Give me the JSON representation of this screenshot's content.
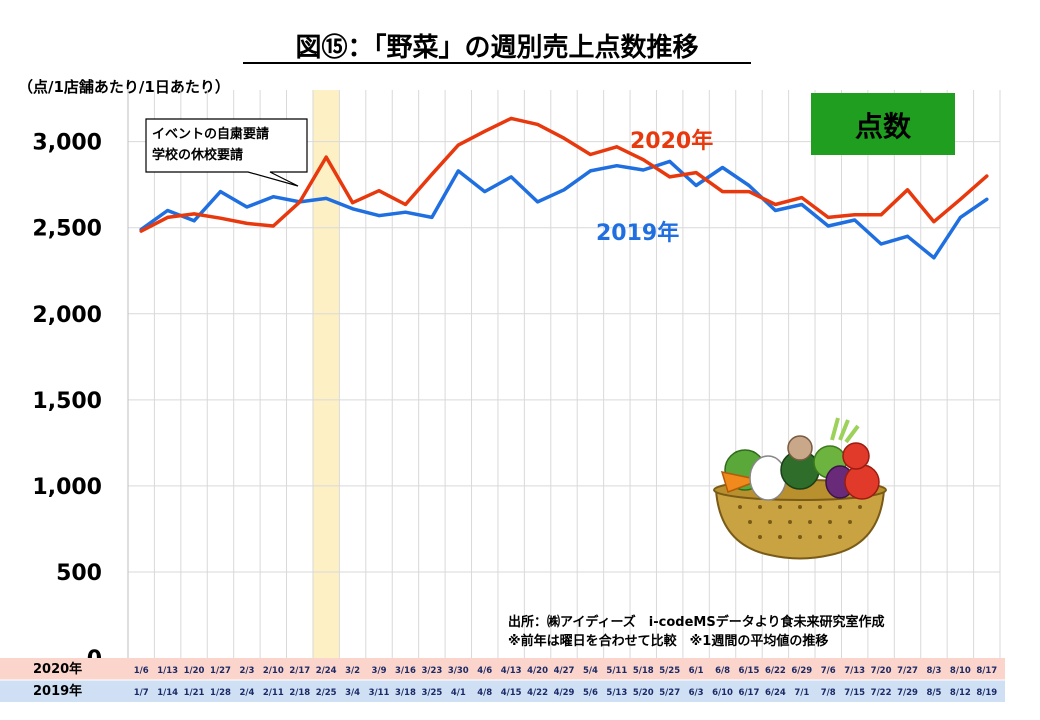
{
  "chart_data": {
    "type": "line",
    "title": "図⑮：「野菜」の週別売上点数推移",
    "unit_label": "（点/1店舗あたり/1日あたり）",
    "ylim": [
      0,
      3300
    ],
    "yticks": [
      0,
      500,
      1000,
      1500,
      2000,
      2500,
      3000
    ],
    "ytick_labels": [
      "0",
      "500",
      "1,000",
      "1,500",
      "2,000",
      "2,500",
      "3,000"
    ],
    "grid": true,
    "badge": "点数",
    "categories_2020": [
      "1/6",
      "1/13",
      "1/20",
      "1/27",
      "2/3",
      "2/10",
      "2/17",
      "2/24",
      "3/2",
      "3/9",
      "3/16",
      "3/23",
      "3/30",
      "4/6",
      "4/13",
      "4/20",
      "4/27",
      "5/4",
      "5/11",
      "5/18",
      "5/25",
      "6/1",
      "6/8",
      "6/15",
      "6/22",
      "6/29",
      "7/6",
      "7/13",
      "7/20",
      "7/27",
      "8/3",
      "8/10",
      "8/17"
    ],
    "categories_2019": [
      "1/7",
      "1/14",
      "1/21",
      "1/28",
      "2/4",
      "2/11",
      "2/18",
      "2/25",
      "3/4",
      "3/11",
      "3/18",
      "3/25",
      "4/1",
      "4/8",
      "4/15",
      "4/22",
      "4/29",
      "5/6",
      "5/13",
      "5/20",
      "5/27",
      "6/3",
      "6/10",
      "6/17",
      "6/24",
      "7/1",
      "7/8",
      "7/15",
      "7/22",
      "7/29",
      "8/5",
      "8/12",
      "8/19"
    ],
    "row_labels": [
      "2020年",
      "2019年"
    ],
    "series": [
      {
        "name": "2020年",
        "color": "#e8380d",
        "values": [
          2480,
          2560,
          2580,
          2555,
          2525,
          2510,
          2650,
          2910,
          2645,
          2715,
          2635,
          2810,
          2980,
          3060,
          3135,
          3100,
          3020,
          2925,
          2970,
          2895,
          2795,
          2820,
          2710,
          2710,
          2635,
          2675,
          2560,
          2575,
          2575,
          2720,
          2535,
          2665,
          2800
        ]
      },
      {
        "name": "2019年",
        "color": "#1f6fe0",
        "values": [
          2490,
          2600,
          2540,
          2710,
          2620,
          2680,
          2650,
          2670,
          2610,
          2570,
          2590,
          2560,
          2830,
          2710,
          2795,
          2650,
          2720,
          2830,
          2860,
          2835,
          2885,
          2745,
          2850,
          2745,
          2600,
          2635,
          2510,
          2545,
          2405,
          2450,
          2325,
          2560,
          2665
        ]
      }
    ],
    "highlight_week_index": 7,
    "annotations": {
      "callout_lines": [
        "イベントの自粛要請",
        "学校の休校要請"
      ],
      "source_lines": [
        "出所：㈱アイディーズ　i-codeMSデータより食未来研究室作成",
        "※前年は曜日を合わせて比較　※1週間の平均値の推移"
      ]
    },
    "colors": {
      "badge_bg": "#1f9e1f",
      "highlight": "#fdf0c4",
      "row_2020_bg": "#fbd5cc",
      "row_2019_bg": "#cfe0f5"
    }
  }
}
